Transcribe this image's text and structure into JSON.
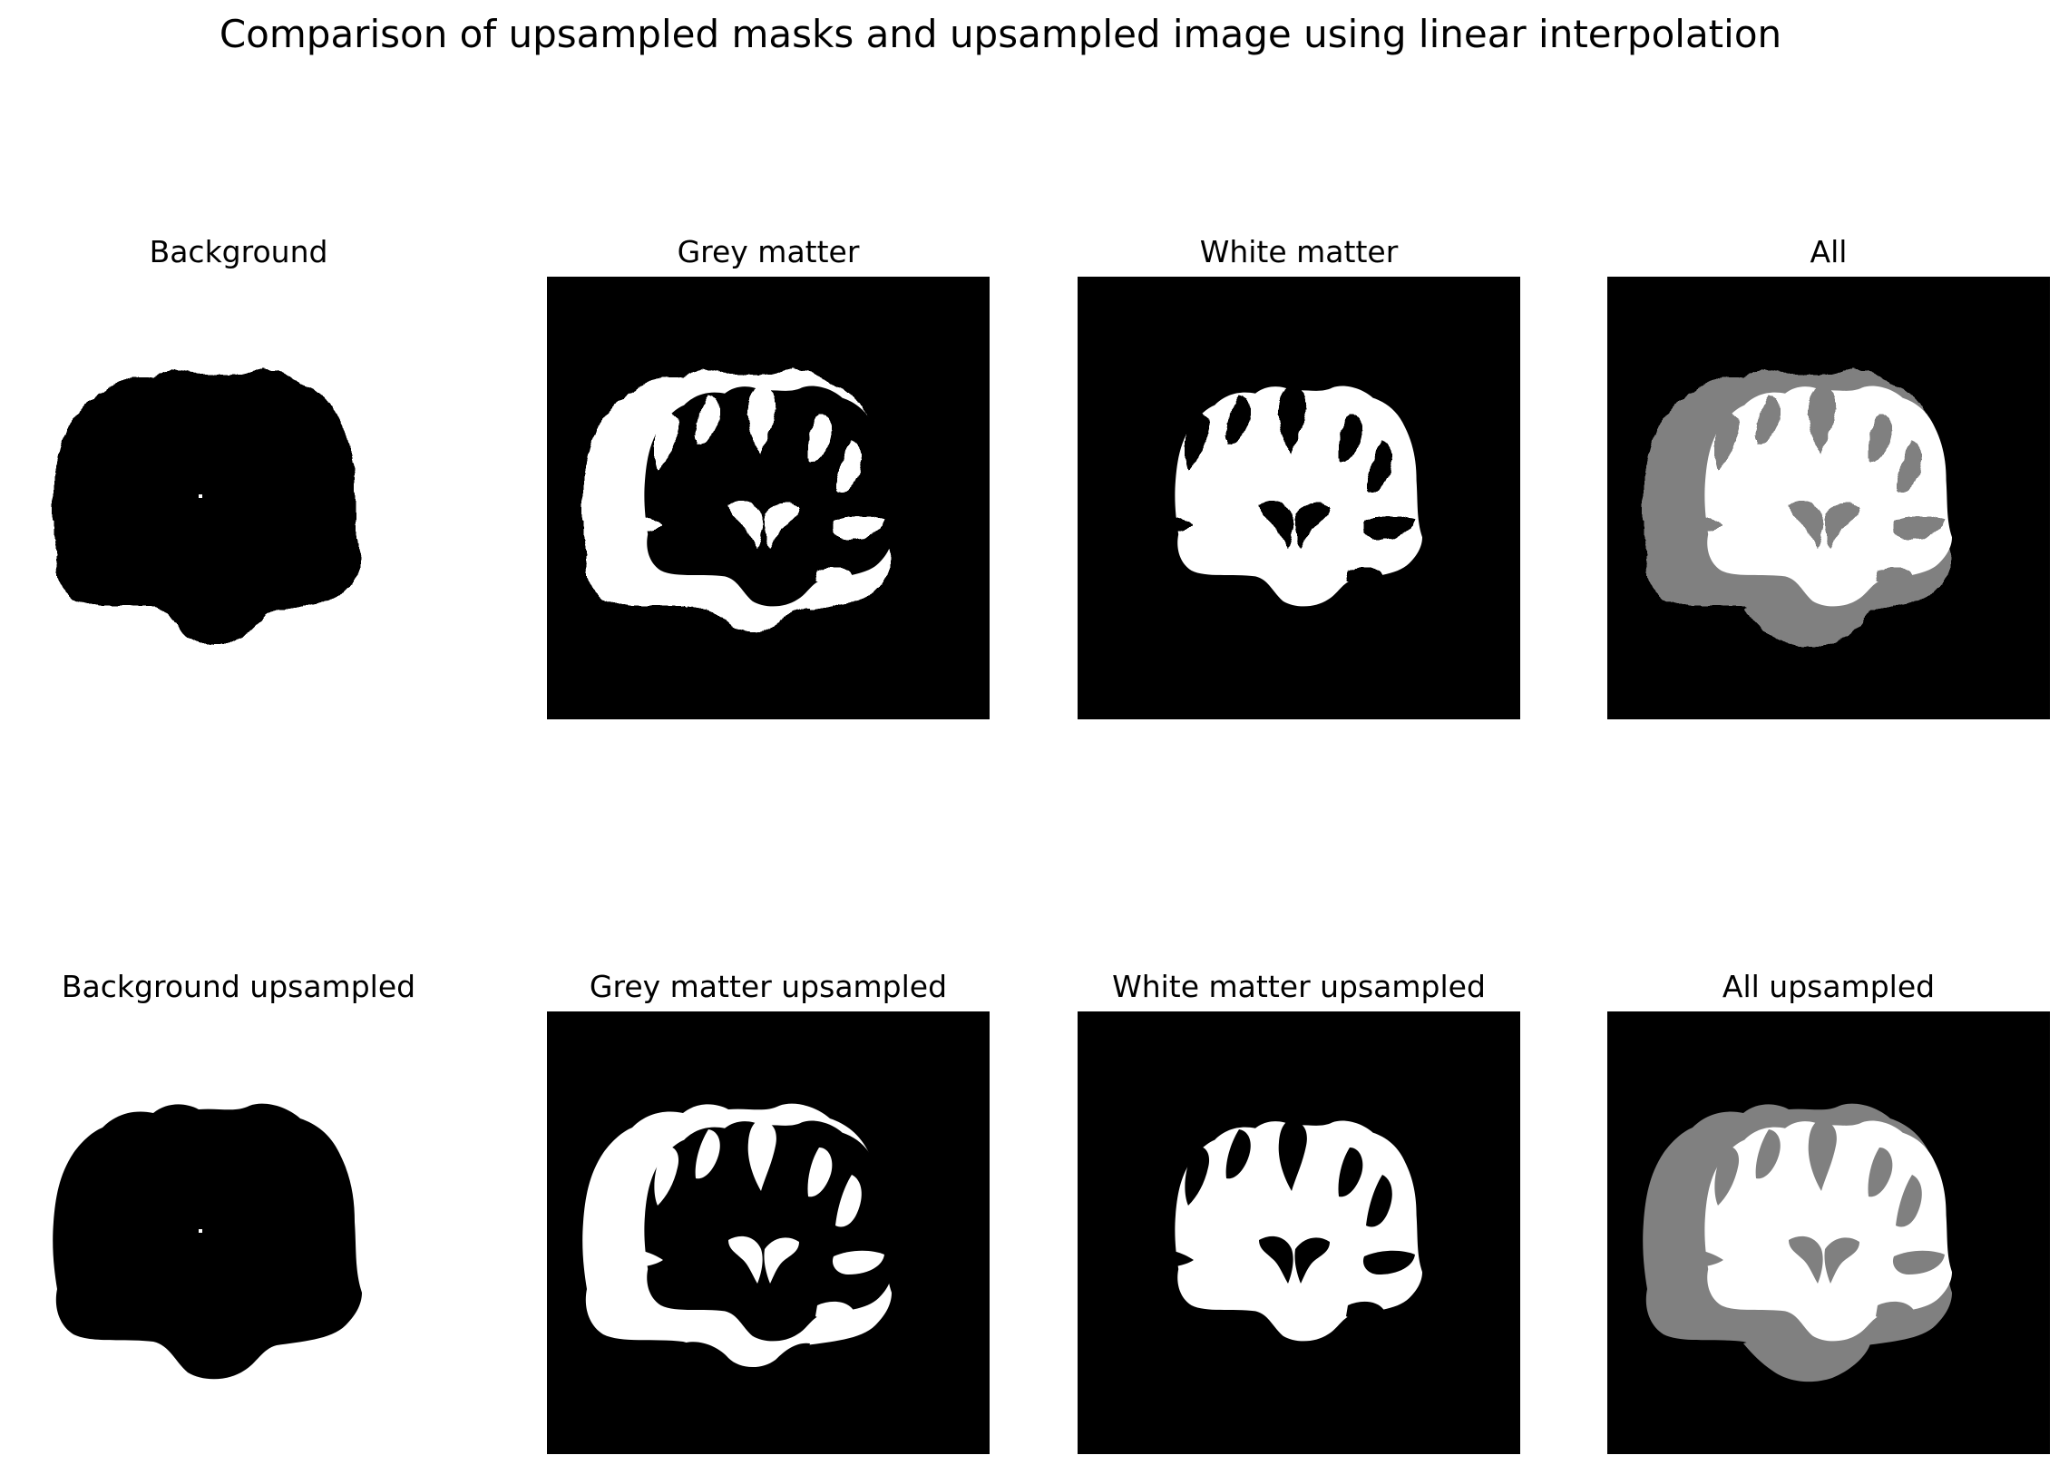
{
  "figure": {
    "title": "Comparison of upsampled masks and upsampled image using linear interpolation"
  },
  "panels": [
    {
      "id": "bg",
      "title": "Background",
      "kind": "background",
      "upsampled": false
    },
    {
      "id": "grey",
      "title": "Grey matter",
      "kind": "grey",
      "upsampled": false
    },
    {
      "id": "white",
      "title": "White matter",
      "kind": "white",
      "upsampled": false
    },
    {
      "id": "all",
      "title": "All",
      "kind": "all",
      "upsampled": false
    },
    {
      "id": "bg-up",
      "title": "Background upsampled",
      "kind": "background",
      "upsampled": true
    },
    {
      "id": "grey-up",
      "title": "Grey matter upsampled",
      "kind": "grey",
      "upsampled": true
    },
    {
      "id": "white-up",
      "title": "White matter upsampled",
      "kind": "white",
      "upsampled": true
    },
    {
      "id": "all-up",
      "title": "All upsampled",
      "kind": "all",
      "upsampled": true
    }
  ],
  "colors": {
    "figure_background": "#ffffff",
    "mask_off": "#000000",
    "mask_on": "#ffffff",
    "all_grey_matter": "#808080",
    "all_white_matter": "#ffffff"
  }
}
